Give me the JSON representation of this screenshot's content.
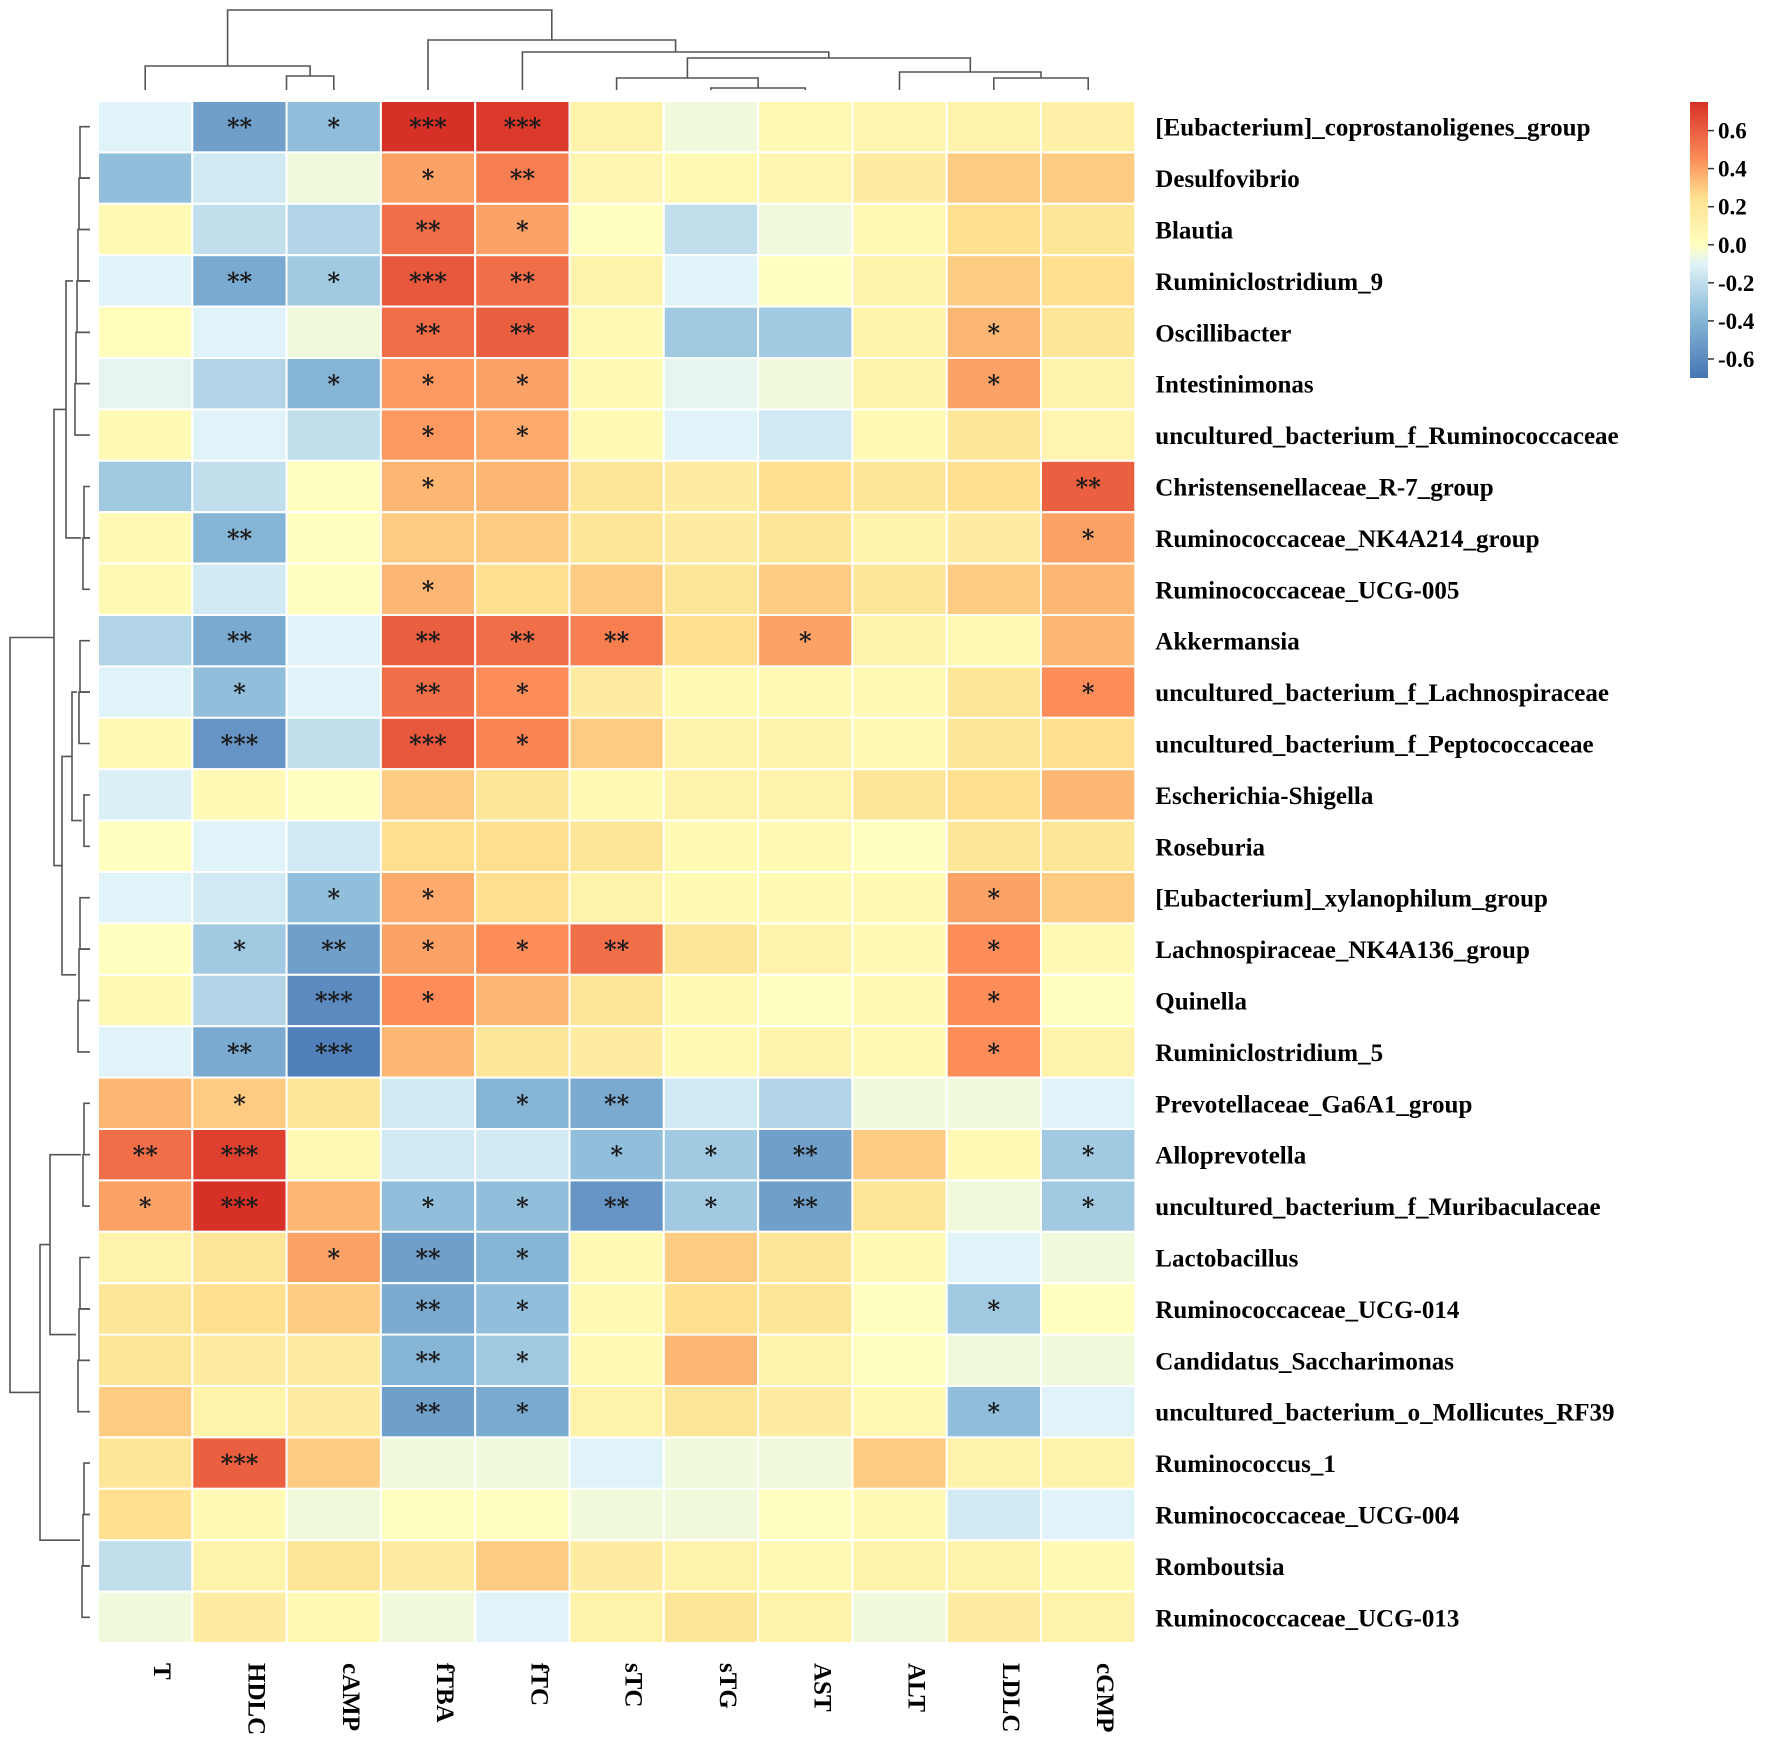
{
  "chart_data": {
    "type": "heatmap",
    "title": "",
    "columns": [
      "T",
      "HDLC",
      "cAMP",
      "fTBA",
      "fTC",
      "sTC",
      "sTG",
      "AST",
      "ALT",
      "LDLC",
      "cGMP"
    ],
    "rows": [
      "[Eubacterium]_coprostanoligenes_group",
      "Desulfovibrio",
      "Blautia",
      "Ruminiclostridium_9",
      "Oscillibacter",
      "Intestinimonas",
      "uncultured_bacterium_f_Ruminococcaceae",
      "Christensenellaceae_R-7_group",
      "Ruminococcaceae_NK4A214_group",
      "Ruminococcaceae_UCG-005",
      "Akkermansia",
      "uncultured_bacterium_f_Lachnospiraceae",
      "uncultured_bacterium_f_Peptococcaceae",
      "Escherichia-Shigella",
      "Roseburia",
      "[Eubacterium]_xylanophilum_group",
      "Lachnospiraceae_NK4A136_group",
      "Quinella",
      "Ruminiclostridium_5",
      "Prevotellaceae_Ga6A1_group",
      "Alloprevotella",
      "uncultured_bacterium_f_Muribaculaceae",
      "Lactobacillus",
      "Ruminococcaceae_UCG-014",
      "Candidatus_Saccharimonas",
      "uncultured_bacterium_o_Mollicutes_RF39",
      "Ruminococcus_1",
      "Ruminococcaceae_UCG-004",
      "Romboutsia",
      "Ruminococcaceae_UCG-013"
    ],
    "values": [
      [
        -0.1,
        -0.5,
        -0.35,
        0.75,
        0.72,
        0.1,
        -0.05,
        0.05,
        0.08,
        0.1,
        0.12
      ],
      [
        -0.35,
        -0.15,
        -0.05,
        0.4,
        0.5,
        0.08,
        0.05,
        0.08,
        0.15,
        0.3,
        0.3
      ],
      [
        0.05,
        -0.2,
        -0.25,
        0.55,
        0.4,
        0.0,
        -0.2,
        -0.05,
        0.05,
        0.25,
        0.2
      ],
      [
        -0.1,
        -0.45,
        -0.3,
        0.62,
        0.55,
        0.1,
        -0.1,
        0.0,
        0.1,
        0.3,
        0.25
      ],
      [
        0.02,
        -0.1,
        -0.05,
        0.55,
        0.6,
        0.05,
        -0.3,
        -0.3,
        0.1,
        0.35,
        0.2
      ],
      [
        -0.08,
        -0.25,
        -0.4,
        0.42,
        0.4,
        0.05,
        -0.08,
        -0.05,
        0.1,
        0.4,
        0.1
      ],
      [
        0.05,
        -0.1,
        -0.2,
        0.42,
        0.38,
        0.05,
        -0.1,
        -0.15,
        0.05,
        0.2,
        0.08
      ],
      [
        -0.3,
        -0.2,
        0.0,
        0.35,
        0.35,
        0.2,
        0.15,
        0.25,
        0.2,
        0.25,
        0.6
      ],
      [
        0.05,
        -0.4,
        0.0,
        0.3,
        0.3,
        0.2,
        0.15,
        0.2,
        0.1,
        0.15,
        0.4
      ],
      [
        0.05,
        -0.15,
        0.0,
        0.35,
        0.25,
        0.3,
        0.2,
        0.3,
        0.2,
        0.3,
        0.35
      ],
      [
        -0.25,
        -0.45,
        -0.1,
        0.6,
        0.55,
        0.5,
        0.25,
        0.4,
        0.1,
        0.05,
        0.35
      ],
      [
        -0.1,
        -0.35,
        -0.1,
        0.55,
        0.45,
        0.15,
        0.05,
        0.05,
        0.05,
        0.2,
        0.45
      ],
      [
        0.05,
        -0.55,
        -0.2,
        0.62,
        0.48,
        0.3,
        0.1,
        0.1,
        0.05,
        0.2,
        0.25
      ],
      [
        -0.12,
        0.05,
        0.0,
        0.3,
        0.2,
        0.05,
        0.1,
        0.1,
        0.2,
        0.25,
        0.35
      ],
      [
        0.0,
        -0.1,
        -0.15,
        0.25,
        0.25,
        0.2,
        0.05,
        0.05,
        0.0,
        0.2,
        0.2
      ],
      [
        -0.1,
        -0.15,
        -0.35,
        0.38,
        0.25,
        0.1,
        0.05,
        0.05,
        0.05,
        0.4,
        0.3
      ],
      [
        0.0,
        -0.3,
        -0.5,
        0.4,
        0.45,
        0.55,
        0.2,
        0.1,
        0.05,
        0.45,
        0.05
      ],
      [
        0.05,
        -0.25,
        -0.6,
        0.45,
        0.35,
        0.2,
        0.05,
        0.0,
        0.05,
        0.45,
        0.0
      ],
      [
        -0.1,
        -0.45,
        -0.65,
        0.35,
        0.2,
        0.15,
        0.05,
        0.1,
        0.05,
        0.45,
        0.1
      ],
      [
        0.35,
        0.3,
        0.2,
        -0.15,
        -0.4,
        -0.45,
        -0.15,
        -0.25,
        -0.05,
        -0.05,
        -0.1
      ],
      [
        0.55,
        0.7,
        0.05,
        -0.15,
        -0.15,
        -0.35,
        -0.3,
        -0.5,
        0.3,
        0.05,
        -0.3
      ],
      [
        0.4,
        0.75,
        0.35,
        -0.35,
        -0.35,
        -0.55,
        -0.3,
        -0.5,
        0.2,
        -0.05,
        -0.3
      ],
      [
        0.1,
        0.2,
        0.4,
        -0.5,
        -0.4,
        0.05,
        0.3,
        0.2,
        0.05,
        -0.1,
        -0.05
      ],
      [
        0.2,
        0.25,
        0.3,
        -0.45,
        -0.35,
        0.05,
        0.25,
        0.2,
        0.0,
        -0.3,
        0.0
      ],
      [
        0.2,
        0.15,
        0.15,
        -0.4,
        -0.3,
        0.05,
        0.35,
        0.1,
        0.0,
        -0.05,
        -0.05
      ],
      [
        0.3,
        0.1,
        0.15,
        -0.5,
        -0.45,
        0.1,
        0.2,
        0.15,
        0.05,
        -0.35,
        -0.1
      ],
      [
        0.2,
        0.6,
        0.3,
        -0.05,
        -0.05,
        -0.1,
        -0.05,
        -0.05,
        0.3,
        0.1,
        0.1
      ],
      [
        0.25,
        0.05,
        -0.05,
        0.0,
        0.0,
        -0.05,
        -0.05,
        0.0,
        0.05,
        -0.15,
        -0.1
      ],
      [
        -0.2,
        0.1,
        0.2,
        0.15,
        0.3,
        0.15,
        0.1,
        0.05,
        0.1,
        0.1,
        0.05
      ],
      [
        -0.05,
        0.15,
        0.05,
        -0.05,
        -0.1,
        0.1,
        0.2,
        0.1,
        -0.05,
        0.15,
        0.1
      ]
    ],
    "significance": [
      [
        "",
        "**",
        "*",
        "***",
        "***",
        "",
        "",
        "",
        "",
        "",
        ""
      ],
      [
        "",
        "",
        "",
        "*",
        "**",
        "",
        "",
        "",
        "",
        "",
        ""
      ],
      [
        "",
        "",
        "",
        "**",
        "*",
        "",
        "",
        "",
        "",
        "",
        ""
      ],
      [
        "",
        "**",
        "*",
        "***",
        "**",
        "",
        "",
        "",
        "",
        "",
        ""
      ],
      [
        "",
        "",
        "",
        "**",
        "**",
        "",
        "",
        "",
        "",
        "*",
        ""
      ],
      [
        "",
        "",
        "*",
        "*",
        "*",
        "",
        "",
        "",
        "",
        "*",
        ""
      ],
      [
        "",
        "",
        "",
        "*",
        "*",
        "",
        "",
        "",
        "",
        "",
        ""
      ],
      [
        "",
        "",
        "",
        "*",
        "",
        "",
        "",
        "",
        "",
        "",
        "**"
      ],
      [
        "",
        "**",
        "",
        "",
        "",
        "",
        "",
        "",
        "",
        "",
        "*"
      ],
      [
        "",
        "",
        "",
        "*",
        "",
        "",
        "",
        "",
        "",
        "",
        ""
      ],
      [
        "",
        "**",
        "",
        "**",
        "**",
        "**",
        "",
        "*",
        "",
        "",
        ""
      ],
      [
        "",
        "*",
        "",
        "**",
        "*",
        "",
        "",
        "",
        "",
        "",
        "*"
      ],
      [
        "",
        "***",
        "",
        "***",
        "*",
        "",
        "",
        "",
        "",
        "",
        ""
      ],
      [
        "",
        "",
        "",
        "",
        "",
        "",
        "",
        "",
        "",
        "",
        ""
      ],
      [
        "",
        "",
        "",
        "",
        "",
        "",
        "",
        "",
        "",
        "",
        ""
      ],
      [
        "",
        "",
        "*",
        "*",
        "",
        "",
        "",
        "",
        "",
        "*",
        ""
      ],
      [
        "",
        "*",
        "**",
        "*",
        "*",
        "**",
        "",
        "",
        "",
        "*",
        ""
      ],
      [
        "",
        "",
        "***",
        "*",
        "",
        "",
        "",
        "",
        "",
        "*",
        ""
      ],
      [
        "",
        "**",
        "***",
        "",
        "",
        "",
        "",
        "",
        "",
        "*",
        ""
      ],
      [
        "",
        "*",
        "",
        "",
        "*",
        "**",
        "",
        "",
        "",
        "",
        ""
      ],
      [
        "**",
        "***",
        "",
        "",
        "",
        "*",
        "*",
        "**",
        "",
        "",
        "*"
      ],
      [
        "*",
        "***",
        "",
        "*",
        "*",
        "**",
        "*",
        "**",
        "",
        "",
        "*"
      ],
      [
        "",
        "",
        "*",
        "**",
        "*",
        "",
        "",
        "",
        "",
        "",
        ""
      ],
      [
        "",
        "",
        "",
        "**",
        "*",
        "",
        "",
        "",
        "",
        "*",
        ""
      ],
      [
        "",
        "",
        "",
        "**",
        "*",
        "",
        "",
        "",
        "",
        "",
        ""
      ],
      [
        "",
        "",
        "",
        "**",
        "*",
        "",
        "",
        "",
        "",
        "*",
        ""
      ],
      [
        "",
        "***",
        "",
        "",
        "",
        "",
        "",
        "",
        "",
        "",
        ""
      ],
      [
        "",
        "",
        "",
        "",
        "",
        "",
        "",
        "",
        "",
        "",
        ""
      ],
      [
        "",
        "",
        "",
        "",
        "",
        "",
        "",
        "",
        "",
        "",
        ""
      ],
      [
        "",
        "",
        "",
        "",
        "",
        "",
        "",
        "",
        "",
        "",
        ""
      ]
    ],
    "color_scale": {
      "range": [
        -0.7,
        0.75
      ],
      "ticks": [
        0.6,
        0.4,
        0.2,
        0.0,
        -0.2,
        -0.4,
        -0.6
      ],
      "tick_labels": [
        "0.6",
        "0.4",
        "0.2",
        "0.0",
        "-0.2",
        "-0.4",
        "-0.6"
      ],
      "stops": [
        {
          "v": -0.7,
          "color": "#4575b4"
        },
        {
          "v": -0.35,
          "color": "#91bfdb"
        },
        {
          "v": -0.1,
          "color": "#e0f3f8"
        },
        {
          "v": 0.0,
          "color": "#ffffbf"
        },
        {
          "v": 0.25,
          "color": "#fee090"
        },
        {
          "v": 0.45,
          "color": "#fc8d59"
        },
        {
          "v": 0.75,
          "color": "#d73027"
        }
      ]
    },
    "legend_position": "top-right",
    "col_dendrogram_order": [
      "T",
      "HDLC",
      "cAMP",
      "fTBA",
      "fTC",
      "sTC",
      "sTG",
      "AST",
      "ALT",
      "LDLC",
      "cGMP"
    ],
    "row_dendrogram": "hierarchical clustering"
  }
}
